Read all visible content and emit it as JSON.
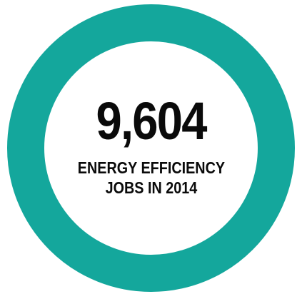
{
  "stat": {
    "value": "9,604",
    "caption_line1": "ENERGY EFFICIENCY",
    "caption_line2": "JOBS IN 2014"
  },
  "colors": {
    "ring": "#14a79c",
    "text": "#0a0a0a",
    "background": "#ffffff"
  }
}
